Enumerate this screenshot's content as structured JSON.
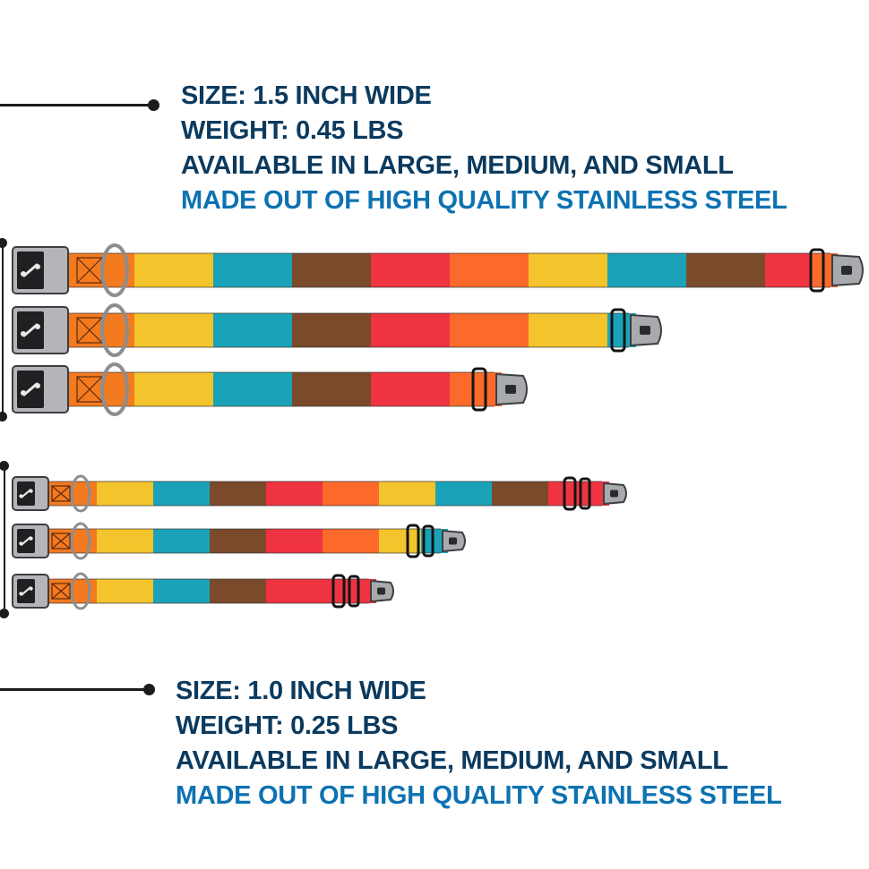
{
  "specs": {
    "large": {
      "size": "SIZE: 1.5 INCH WIDE",
      "weight": "WEIGHT: 0.45 LBS",
      "availability": "AVAILABLE IN LARGE, MEDIUM, AND SMALL",
      "material": "MADE OUT OF HIGH QUALITY STAINLESS STEEL"
    },
    "small": {
      "size": "SIZE: 1.0 INCH WIDE",
      "weight": "WEIGHT: 0.25 LBS",
      "availability": "AVAILABLE IN LARGE, MEDIUM, AND SMALL",
      "material": "MADE OUT OF HIGH QUALITY STAINLESS STEEL"
    }
  },
  "colors": {
    "text_dark": "#0b3a5e",
    "text_accent": "#0d72b2",
    "stripes": [
      "#f47a1f",
      "#f4c42c",
      "#1aa3b8",
      "#7a4a2a",
      "#ef3340",
      "#fb6a2a"
    ]
  },
  "collars": [
    {
      "id": "wide-large",
      "group": "1.5 inch",
      "size": "large"
    },
    {
      "id": "wide-medium",
      "group": "1.5 inch",
      "size": "medium"
    },
    {
      "id": "wide-small",
      "group": "1.5 inch",
      "size": "small"
    },
    {
      "id": "narrow-large",
      "group": "1.0 inch",
      "size": "large"
    },
    {
      "id": "narrow-medium",
      "group": "1.0 inch",
      "size": "medium"
    },
    {
      "id": "narrow-small",
      "group": "1.0 inch",
      "size": "small"
    }
  ]
}
